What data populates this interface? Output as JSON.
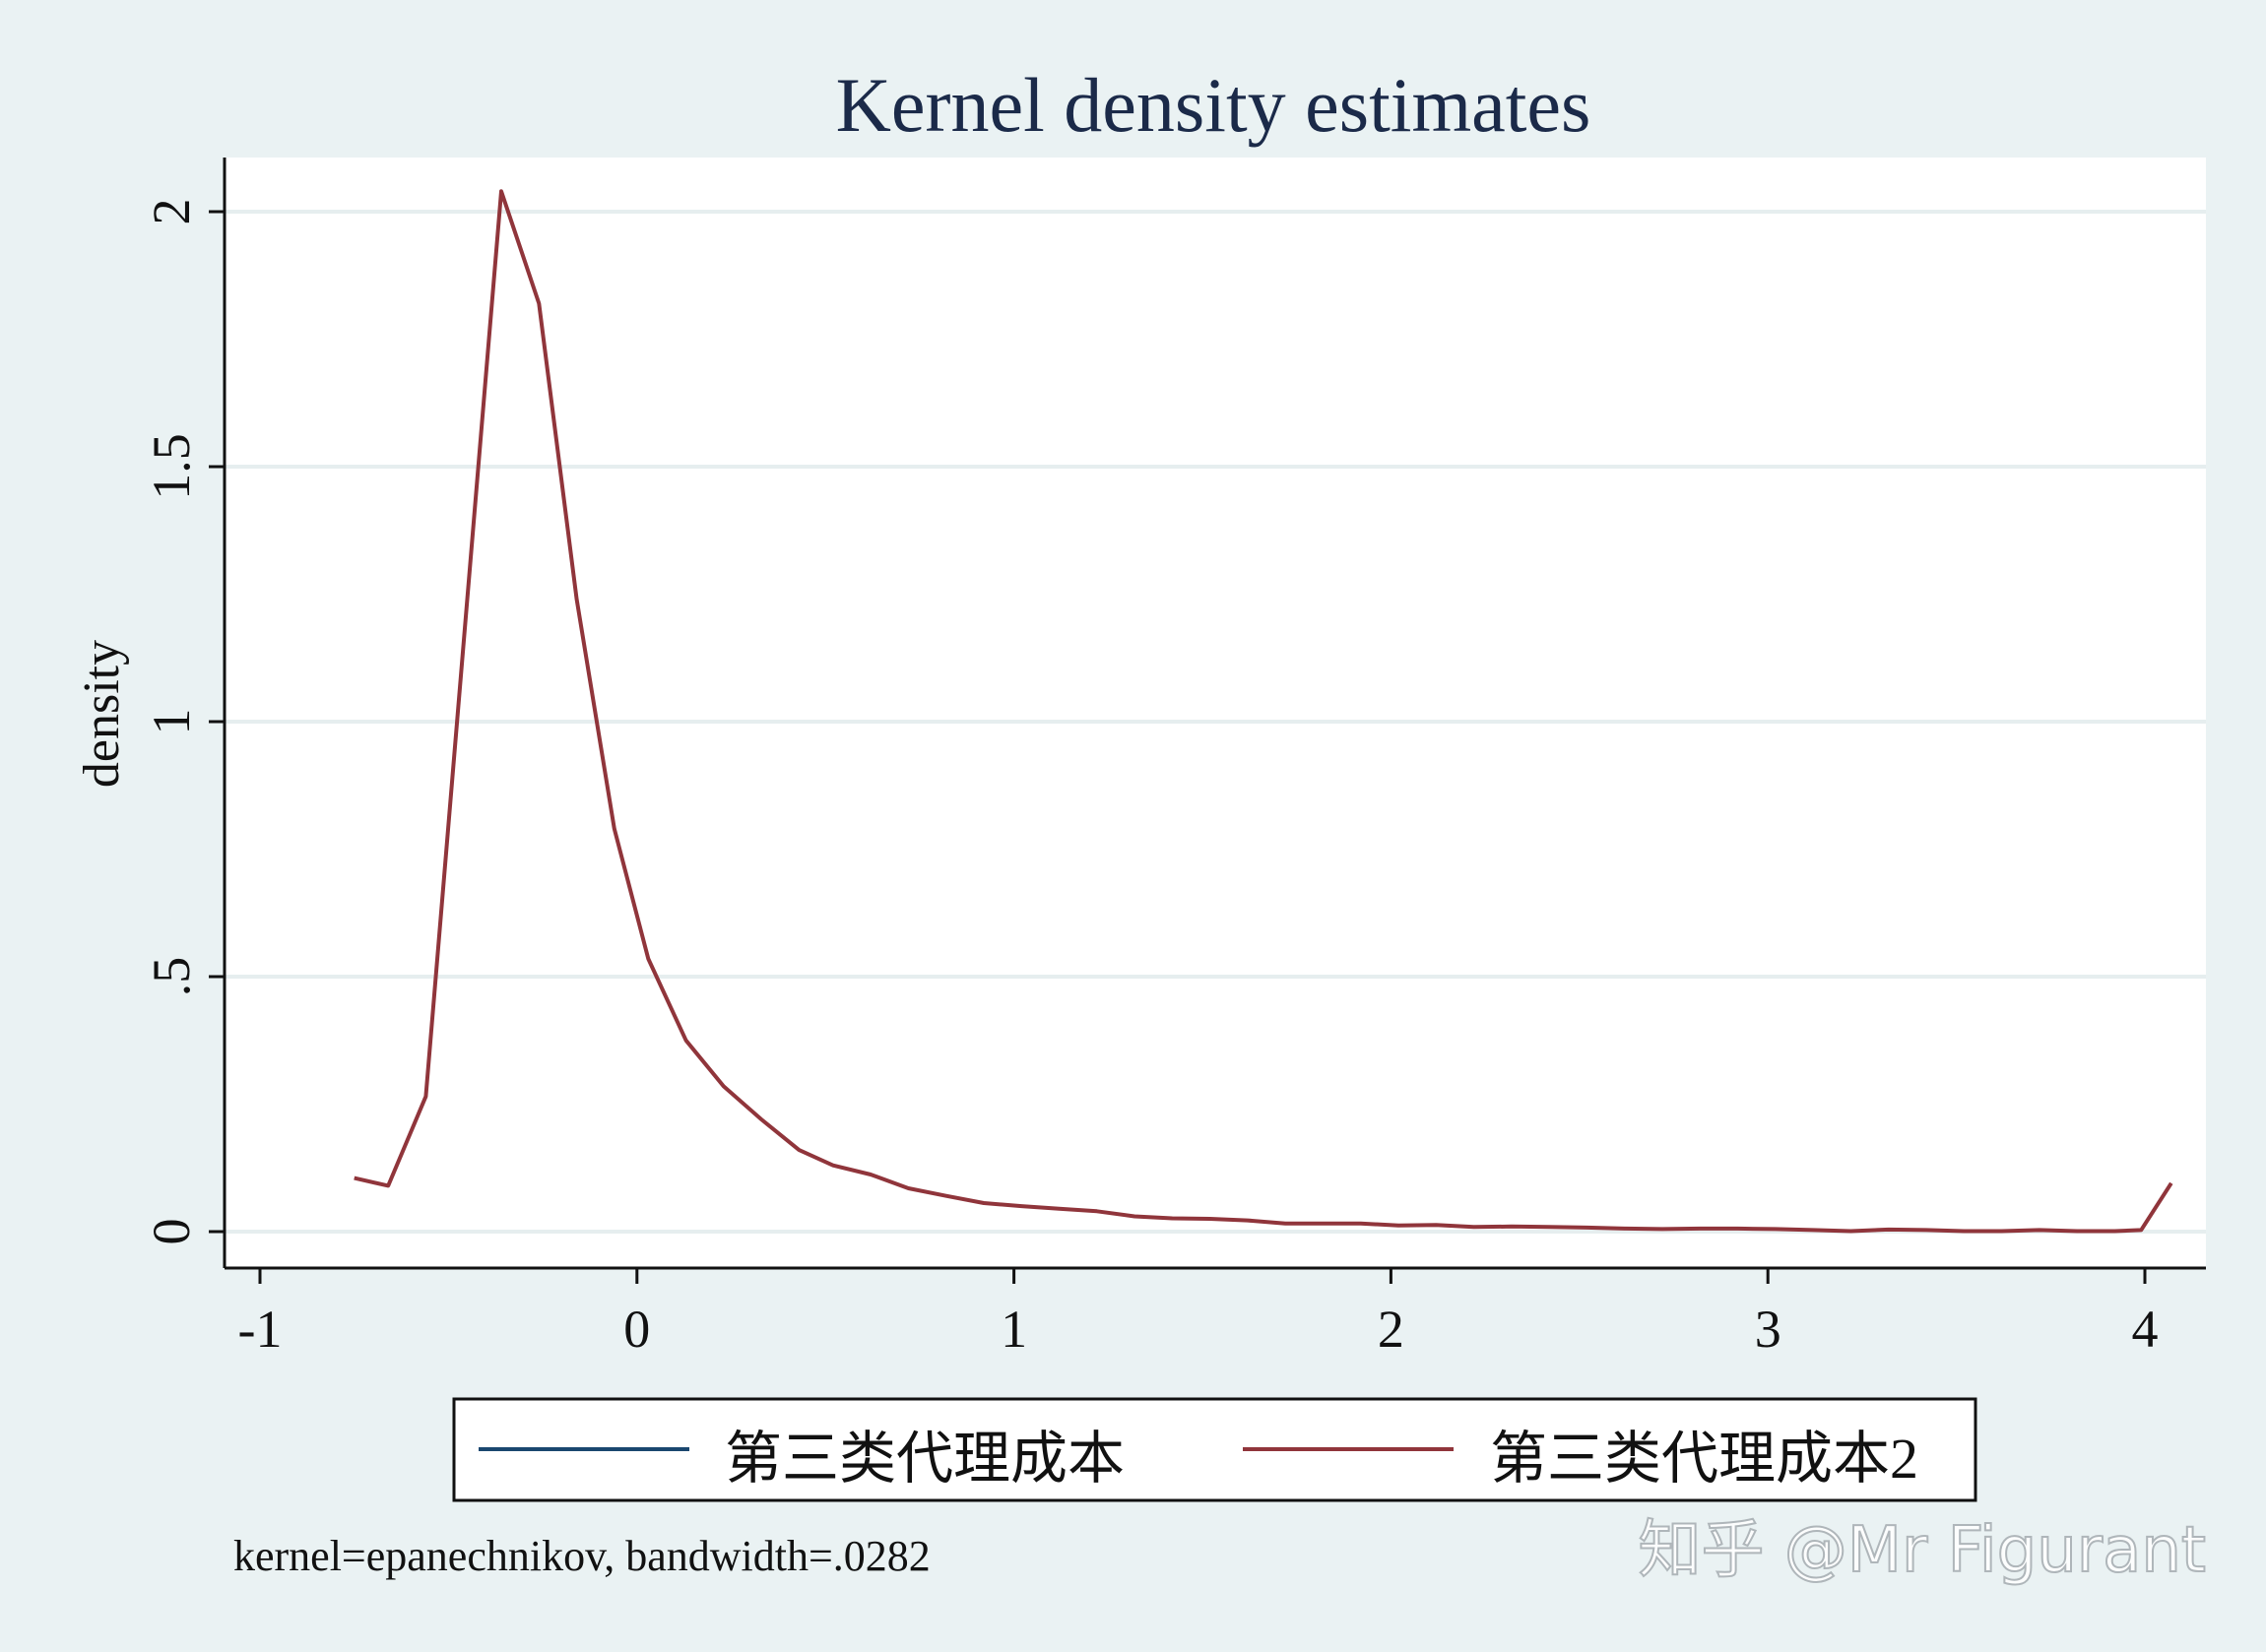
{
  "chart_data": {
    "type": "line",
    "title": "Kernel density estimates",
    "xlabel": "",
    "ylabel": "density",
    "xlim": [
      -1.1,
      4.15
    ],
    "ylim": [
      -0.07,
      2.1
    ],
    "xticks": [
      {
        "value": -1,
        "label": "-1"
      },
      {
        "value": 0,
        "label": "0"
      },
      {
        "value": 1,
        "label": "1"
      },
      {
        "value": 2,
        "label": "2"
      },
      {
        "value": 3,
        "label": "3"
      },
      {
        "value": 4,
        "label": "4"
      }
    ],
    "yticks": [
      {
        "value": 0,
        "label": "0"
      },
      {
        "value": 0.5,
        "label": ".5"
      },
      {
        "value": 1,
        "label": "1"
      },
      {
        "value": 1.5,
        "label": "1.5"
      },
      {
        "value": 2,
        "label": "2"
      }
    ],
    "grid": true,
    "legend_position": "bottom",
    "series": [
      {
        "name": "第三类代理成本",
        "color": "#1a476f",
        "x": [],
        "y": []
      },
      {
        "name": "第三类代理成本2",
        "color": "#90353b",
        "x": [
          -0.75,
          -0.66,
          -0.56,
          -0.36,
          -0.26,
          -0.16,
          -0.06,
          0.03,
          0.13,
          0.23,
          0.33,
          0.43,
          0.52,
          0.62,
          0.72,
          0.82,
          0.92,
          1.02,
          1.12,
          1.22,
          1.32,
          1.42,
          1.52,
          1.62,
          1.72,
          1.82,
          1.92,
          2.02,
          2.12,
          2.22,
          2.32,
          2.42,
          2.52,
          2.62,
          2.72,
          2.82,
          2.92,
          3.02,
          3.12,
          3.22,
          3.32,
          3.42,
          3.52,
          3.62,
          3.72,
          3.82,
          3.92,
          3.99,
          4.07
        ],
        "y": [
          0.105,
          0.09,
          0.265,
          2.04,
          1.82,
          1.24,
          0.79,
          0.535,
          0.375,
          0.285,
          0.22,
          0.16,
          0.13,
          0.112,
          0.085,
          0.07,
          0.056,
          0.05,
          0.045,
          0.04,
          0.03,
          0.026,
          0.025,
          0.022,
          0.016,
          0.016,
          0.016,
          0.012,
          0.013,
          0.009,
          0.01,
          0.009,
          0.008,
          0.006,
          0.005,
          0.006,
          0.006,
          0.005,
          0.003,
          0.001,
          0.004,
          0.003,
          0.001,
          0.001,
          0.003,
          0.001,
          0.001,
          0.003,
          0.095
        ]
      }
    ],
    "note": "kernel=epanechnikov, bandwidth=.0282"
  },
  "watermark": "知乎 @Mr Figurant",
  "colors": {
    "outer_background": "#eaf2f3",
    "plot_background": "#ffffff",
    "gridline": "#e6eeef",
    "axis": "#111111",
    "title": "#1b2a49"
  }
}
